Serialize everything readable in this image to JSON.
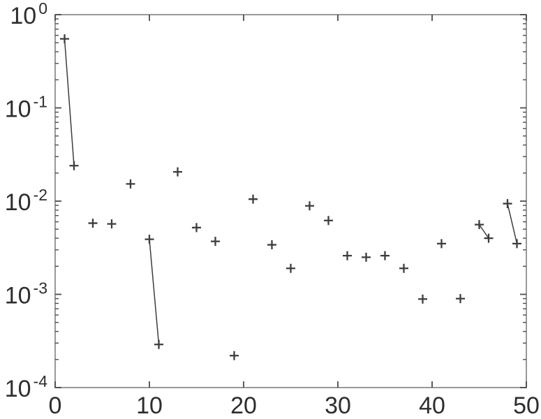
{
  "figure": {
    "background": "#ffffff",
    "colors": {
      "box": "#999999",
      "tick": "#4d4d4d",
      "tick_label": "#2e2e2e",
      "marker": "#3d3d3d",
      "segment": "#3d3d3d"
    }
  },
  "chart_data": {
    "type": "scatter",
    "marker_glyph": "+",
    "title": "",
    "xlabel": "",
    "ylabel": "",
    "grid": false,
    "legend_position": "none",
    "x_axis": {
      "scale": "linear",
      "min": 0,
      "max": 50,
      "ticks": [
        0,
        10,
        20,
        30,
        40,
        50
      ]
    },
    "y_axis": {
      "scale": "log",
      "min_exponent": -4,
      "max_exponent": 0,
      "tick_label_base": "10",
      "tick_exponents": [
        0,
        -1,
        -2,
        -3,
        -4
      ],
      "minor_tick_mantissas": [
        2,
        3,
        4,
        5,
        6,
        7,
        8,
        9
      ]
    },
    "points": [
      {
        "x": 1,
        "y": 0.55
      },
      {
        "x": 2,
        "y": 0.024
      },
      {
        "x": 4,
        "y": 0.0058
      },
      {
        "x": 6,
        "y": 0.0057
      },
      {
        "x": 8,
        "y": 0.0153
      },
      {
        "x": 10,
        "y": 0.0039
      },
      {
        "x": 11,
        "y": 0.00029
      },
      {
        "x": 13,
        "y": 0.0206
      },
      {
        "x": 15,
        "y": 0.0052
      },
      {
        "x": 17,
        "y": 0.0037
      },
      {
        "x": 19,
        "y": 0.00022
      },
      {
        "x": 21,
        "y": 0.0105
      },
      {
        "x": 23,
        "y": 0.0034
      },
      {
        "x": 25,
        "y": 0.0019
      },
      {
        "x": 27,
        "y": 0.0089
      },
      {
        "x": 29,
        "y": 0.0062
      },
      {
        "x": 31,
        "y": 0.0026
      },
      {
        "x": 33,
        "y": 0.0025
      },
      {
        "x": 35,
        "y": 0.0026
      },
      {
        "x": 37,
        "y": 0.0019
      },
      {
        "x": 39,
        "y": 0.00089
      },
      {
        "x": 41,
        "y": 0.0035
      },
      {
        "x": 43,
        "y": 0.0009
      },
      {
        "x": 45,
        "y": 0.0056
      },
      {
        "x": 46,
        "y": 0.004
      },
      {
        "x": 48,
        "y": 0.0094
      },
      {
        "x": 49,
        "y": 0.0035
      }
    ],
    "connected_segments_by_index": [
      [
        0,
        1
      ],
      [
        5,
        6
      ],
      [
        23,
        24
      ],
      [
        25,
        26
      ]
    ]
  }
}
